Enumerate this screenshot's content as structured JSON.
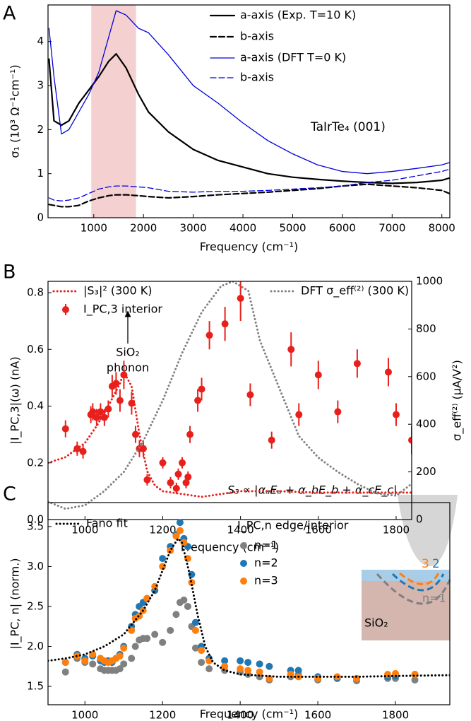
{
  "chart_data": [
    {
      "type": "line",
      "panel_label": "A",
      "xlabel": "Frequency (cm⁻¹)",
      "ylabel": "σ₁ (10³ Ω⁻¹cm⁻¹)",
      "annotation": "TaIrTe₄ (001)",
      "xlim": [
        80,
        8160
      ],
      "ylim": [
        0,
        4.83
      ],
      "xticks": [
        1000,
        2000,
        3000,
        4000,
        5000,
        6000,
        7000,
        8000
      ],
      "yticks": [
        0,
        1,
        2,
        3,
        4
      ],
      "span": [
        950,
        1850
      ],
      "span_color": "#f0c0c0",
      "legend": "upper right",
      "x": [
        100,
        200,
        350,
        500,
        700,
        900,
        1100,
        1300,
        1450,
        1650,
        1900,
        2100,
        2500,
        3000,
        3500,
        4000,
        4500,
        5000,
        5500,
        6000,
        6500,
        7000,
        7500,
        8000,
        8150
      ],
      "series": [
        {
          "name": "a-axis (Exp. T=10 K)",
          "color": "#000000",
          "style": "solid",
          "values": [
            3.6,
            2.2,
            2.1,
            2.2,
            2.6,
            2.9,
            3.2,
            3.55,
            3.72,
            3.4,
            2.8,
            2.4,
            1.95,
            1.55,
            1.3,
            1.15,
            1.0,
            0.92,
            0.87,
            0.83,
            0.8,
            0.78,
            0.8,
            0.85,
            0.9
          ]
        },
        {
          "name": "b-axis",
          "color": "#000000",
          "style": "dashed",
          "values": [
            0.3,
            0.28,
            0.25,
            0.25,
            0.28,
            0.38,
            0.45,
            0.5,
            0.52,
            0.52,
            0.5,
            0.48,
            0.45,
            0.48,
            0.52,
            0.55,
            0.58,
            0.62,
            0.66,
            0.72,
            0.76,
            0.72,
            0.68,
            0.62,
            0.55
          ]
        },
        {
          "name": "a-axis (DFT T=0 K)",
          "color": "#0000dd",
          "style": "solid-thin",
          "values": [
            4.3,
            3.2,
            1.9,
            2.0,
            2.4,
            2.8,
            3.3,
            4.1,
            4.7,
            4.6,
            4.3,
            4.2,
            3.7,
            3.0,
            2.6,
            2.15,
            1.75,
            1.45,
            1.2,
            1.05,
            1.0,
            1.05,
            1.12,
            1.2,
            1.25
          ]
        },
        {
          "name": "b-axis",
          "color": "#0000dd",
          "style": "dashed-thin",
          "values": [
            0.45,
            0.4,
            0.38,
            0.4,
            0.45,
            0.55,
            0.65,
            0.7,
            0.72,
            0.72,
            0.7,
            0.68,
            0.6,
            0.58,
            0.6,
            0.6,
            0.62,
            0.65,
            0.68,
            0.72,
            0.8,
            0.85,
            0.95,
            1.05,
            1.1
          ]
        }
      ]
    },
    {
      "type": "line",
      "panel_label": "B",
      "xlabel": "Frequency (cm⁻¹)",
      "ylabel": "|I_PC,3|(ω) (nA)",
      "y2label": "σ_eff⁽²⁾ (μA/V²)",
      "annotation": [
        "SiO₂",
        "phonon"
      ],
      "formula": "S₃ ∝ |αₐEₐ + α_bE_b + α_cE_c|",
      "xlim": [
        905,
        1840
      ],
      "ylim": [
        0,
        0.84
      ],
      "y2lim": [
        0,
        1000
      ],
      "xticks": [
        1000,
        1200,
        1400,
        1600,
        1800
      ],
      "yticks": [
        {
          "value": 0,
          "label": "0.0"
        },
        0.2,
        0.4,
        0.6,
        0.8
      ],
      "y2ticks": [
        0,
        200,
        400,
        600,
        800,
        1000
      ],
      "legend": "upper left",
      "series": [
        {
          "name": "|S₃|² (300 K)",
          "color": "#e8201c",
          "style": "dotted",
          "x": [
            905,
            950,
            1000,
            1030,
            1060,
            1090,
            1100,
            1120,
            1140,
            1160,
            1180,
            1200,
            1250,
            1300,
            1400,
            1500,
            1600,
            1700,
            1840
          ],
          "values": [
            0.2,
            0.22,
            0.27,
            0.33,
            0.4,
            0.48,
            0.52,
            0.47,
            0.3,
            0.17,
            0.12,
            0.1,
            0.09,
            0.08,
            0.1,
            0.1,
            0.095,
            0.095,
            0.095
          ]
        },
        {
          "name": "I_PC,3 interior",
          "color": "#e8201c",
          "style": "errorbar",
          "x": [
            950,
            980,
            995,
            1015,
            1020,
            1030,
            1040,
            1050,
            1060,
            1070,
            1080,
            1090,
            1100,
            1120,
            1130,
            1140,
            1150,
            1160,
            1200,
            1220,
            1235,
            1240,
            1250,
            1260,
            1265,
            1270,
            1290,
            1300,
            1320,
            1360,
            1400,
            1425,
            1480,
            1530,
            1550,
            1600,
            1650,
            1700,
            1780,
            1800,
            1840
          ],
          "values": [
            0.32,
            0.25,
            0.24,
            0.37,
            0.38,
            0.36,
            0.38,
            0.36,
            0.39,
            0.47,
            0.48,
            0.42,
            0.51,
            0.41,
            0.3,
            0.25,
            0.25,
            0.14,
            0.2,
            0.13,
            0.11,
            0.16,
            0.2,
            0.13,
            0.15,
            0.3,
            0.42,
            0.46,
            0.65,
            0.69,
            0.78,
            0.44,
            0.28,
            0.6,
            0.37,
            0.51,
            0.38,
            0.55,
            0.52,
            0.37,
            0.28
          ],
          "errors": [
            0.03,
            0.025,
            0.025,
            0.03,
            0.03,
            0.03,
            0.03,
            0.03,
            0.03,
            0.04,
            0.04,
            0.04,
            0.05,
            0.04,
            0.03,
            0.03,
            0.03,
            0.02,
            0.02,
            0.02,
            0.02,
            0.02,
            0.02,
            0.02,
            0.02,
            0.03,
            0.04,
            0.04,
            0.05,
            0.06,
            0.08,
            0.04,
            0.03,
            0.06,
            0.04,
            0.05,
            0.04,
            0.05,
            0.05,
            0.04,
            0.05
          ]
        },
        {
          "name": "DFT σ_eff⁽²⁾ (300 K)",
          "color": "#808080",
          "style": "dotted",
          "axis": "y2",
          "x": [
            905,
            950,
            1000,
            1050,
            1100,
            1150,
            1200,
            1250,
            1300,
            1350,
            1380,
            1420,
            1450,
            1500,
            1550,
            1600,
            1650,
            1700,
            1750,
            1800,
            1840
          ],
          "values": [
            75,
            45,
            60,
            120,
            200,
            330,
            500,
            700,
            870,
            980,
            1000,
            960,
            750,
            550,
            350,
            260,
            200,
            150,
            110,
            100,
            150
          ]
        }
      ]
    },
    {
      "type": "scatter",
      "panel_label": "C",
      "xlabel": "Frequency (cm⁻¹)",
      "ylabel": "|I_PC, n| (norm.)",
      "legend_title": "I_PC,n edge/interior",
      "inset_labels": [
        "3",
        "2",
        "n=1",
        "SiO₂"
      ],
      "xlim": [
        905,
        1940
      ],
      "ylim": [
        1.27,
        3.8
      ],
      "xticks": [
        1000,
        1200,
        1400,
        1600,
        1800
      ],
      "yticks": [
        1.5,
        {
          "value": 2,
          "label": "2.0"
        },
        2.5,
        {
          "value": 3,
          "label": "3.0"
        },
        3.5
      ],
      "legend": "upper left",
      "x": [
        950,
        980,
        1000,
        1020,
        1040,
        1050,
        1060,
        1070,
        1080,
        1090,
        1100,
        1120,
        1130,
        1140,
        1150,
        1160,
        1180,
        1200,
        1220,
        1235,
        1245,
        1255,
        1265,
        1275,
        1285,
        1300,
        1320,
        1360,
        1400,
        1420,
        1450,
        1475,
        1530,
        1550,
        1600,
        1650,
        1700,
        1780,
        1800,
        1850
      ],
      "series": [
        {
          "name": "n=1",
          "color": "#808080",
          "style": "markers",
          "values": [
            1.68,
            1.85,
            1.8,
            1.78,
            1.72,
            1.7,
            1.7,
            1.7,
            1.7,
            1.72,
            1.78,
            1.85,
            2.0,
            2.08,
            2.1,
            2.1,
            2.15,
            2.05,
            2.2,
            2.4,
            2.55,
            2.58,
            2.5,
            2.25,
            1.98,
            1.8,
            1.72,
            1.7,
            1.68,
            1.65,
            1.62,
            1.58,
            1.62,
            1.65,
            1.58,
            1.6,
            1.57,
            1.6,
            1.6,
            1.58
          ]
        },
        {
          "name": "n=2",
          "color": "#1f77b4",
          "style": "markers",
          "values": [
            1.8,
            1.9,
            1.85,
            1.88,
            1.82,
            1.8,
            1.82,
            1.8,
            1.85,
            1.9,
            2.0,
            2.25,
            2.4,
            2.5,
            2.55,
            2.6,
            2.7,
            3.1,
            3.25,
            3.4,
            3.55,
            3.35,
            3.25,
            2.9,
            2.3,
            2.0,
            1.85,
            1.82,
            1.82,
            1.8,
            1.78,
            1.75,
            1.7,
            1.7,
            1.62,
            1.6,
            1.6,
            1.62,
            1.63,
            1.65
          ]
        },
        {
          "name": "n=3",
          "color": "#ff7f0e",
          "style": "markers",
          "values": [
            1.8,
            1.88,
            1.82,
            1.9,
            1.85,
            1.82,
            1.8,
            1.82,
            1.85,
            1.88,
            1.98,
            2.2,
            2.35,
            2.38,
            2.45,
            2.6,
            2.75,
            3.0,
            3.2,
            3.38,
            3.45,
            3.3,
            3.1,
            2.8,
            2.2,
            1.95,
            1.82,
            1.75,
            1.72,
            1.7,
            1.68,
            1.6,
            1.65,
            1.62,
            1.6,
            1.62,
            1.6,
            1.65,
            1.66,
            1.65
          ]
        },
        {
          "name": "Fano fit",
          "color": "#000000",
          "style": "dotted",
          "x": [
            905,
            950,
            1000,
            1050,
            1100,
            1150,
            1180,
            1200,
            1220,
            1240,
            1250,
            1270,
            1290,
            1310,
            1330,
            1360,
            1400,
            1500,
            1600,
            1700,
            1800,
            1940
          ],
          "values": [
            1.82,
            1.85,
            1.9,
            2.0,
            2.15,
            2.45,
            2.7,
            2.95,
            3.2,
            3.35,
            3.3,
            2.9,
            2.4,
            2.0,
            1.8,
            1.7,
            1.65,
            1.62,
            1.62,
            1.62,
            1.63,
            1.64
          ]
        }
      ]
    }
  ]
}
